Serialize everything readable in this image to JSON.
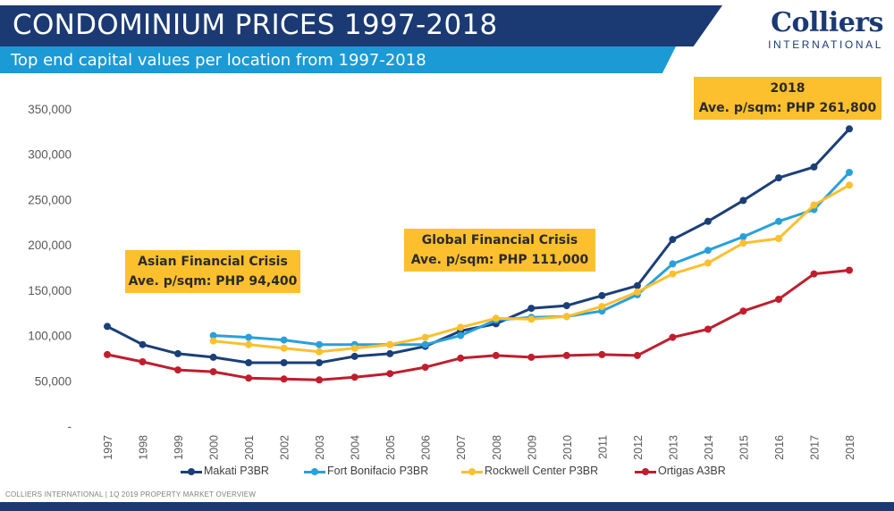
{
  "header": {
    "title": "CONDOMINIUM PRICES 1997-2018",
    "subtitle": "Top end capital values per location from 1997-2018"
  },
  "logo": {
    "name": "Colliers",
    "tagline": "INTERNATIONAL"
  },
  "annotations": {
    "asian": {
      "line1": "Asian Financial Crisis",
      "line2": "Ave. p/sqm: PHP 94,400"
    },
    "global": {
      "line1": "Global Financial Crisis",
      "line2": "Ave. p/sqm: PHP 111,000"
    },
    "latest": {
      "line1": "2018",
      "line2": "Ave. p/sqm: PHP 261,800"
    }
  },
  "footer": {
    "text": "COLLIERS INTERNATIONAL | 1Q 2019 PROPERTY MARKET OVERVIEW"
  },
  "chart_data": {
    "type": "line",
    "title": "CONDOMINIUM PRICES 1997-2018",
    "subtitle": "Top end capital values per location from 1997-2018",
    "xlabel": "",
    "ylabel": "",
    "x": [
      "1997",
      "1998",
      "1999",
      "2000",
      "2001",
      "2002",
      "2003",
      "2004",
      "2005",
      "2006",
      "2007",
      "2008",
      "2009",
      "2010",
      "2011",
      "2012",
      "2013",
      "2014",
      "2015",
      "2016",
      "2017",
      "2018"
    ],
    "ylim": [
      0,
      350000
    ],
    "yticks": [
      0,
      50000,
      100000,
      150000,
      200000,
      250000,
      300000,
      350000
    ],
    "ytick_labels": [
      "-",
      "50,000",
      "100,000",
      "150,000",
      "200,000",
      "250,000",
      "300,000",
      "350,000"
    ],
    "grid": false,
    "legend_position": "bottom",
    "series": [
      {
        "name": "Makati P3BR",
        "color": "#1b3f78",
        "values": [
          110000,
          90000,
          80000,
          76000,
          70000,
          70000,
          70000,
          77000,
          80000,
          88000,
          105000,
          113000,
          130000,
          133000,
          144000,
          155000,
          206000,
          226000,
          249000,
          274000,
          286000,
          328000
        ]
      },
      {
        "name": "Fort Bonifacio P3BR",
        "color": "#29a0db",
        "values": [
          null,
          null,
          null,
          100000,
          98000,
          95000,
          90000,
          90000,
          90000,
          90000,
          100000,
          117000,
          120000,
          121000,
          127000,
          145000,
          179000,
          194000,
          209000,
          226000,
          239000,
          280000
        ]
      },
      {
        "name": "Rockwell Center P3BR",
        "color": "#fcc02e",
        "values": [
          null,
          null,
          null,
          94000,
          90000,
          86000,
          82000,
          86000,
          90000,
          98000,
          109000,
          119000,
          118000,
          121000,
          132000,
          148000,
          168000,
          180000,
          202000,
          207000,
          244000,
          266000
        ]
      },
      {
        "name": "Ortigas A3BR",
        "color": "#bf1e2e",
        "values": [
          79000,
          71000,
          62000,
          60000,
          53000,
          52000,
          51000,
          54000,
          58000,
          65000,
          75000,
          78000,
          76000,
          78000,
          79000,
          78000,
          98000,
          107000,
          127000,
          140000,
          168000,
          172000
        ]
      }
    ]
  }
}
